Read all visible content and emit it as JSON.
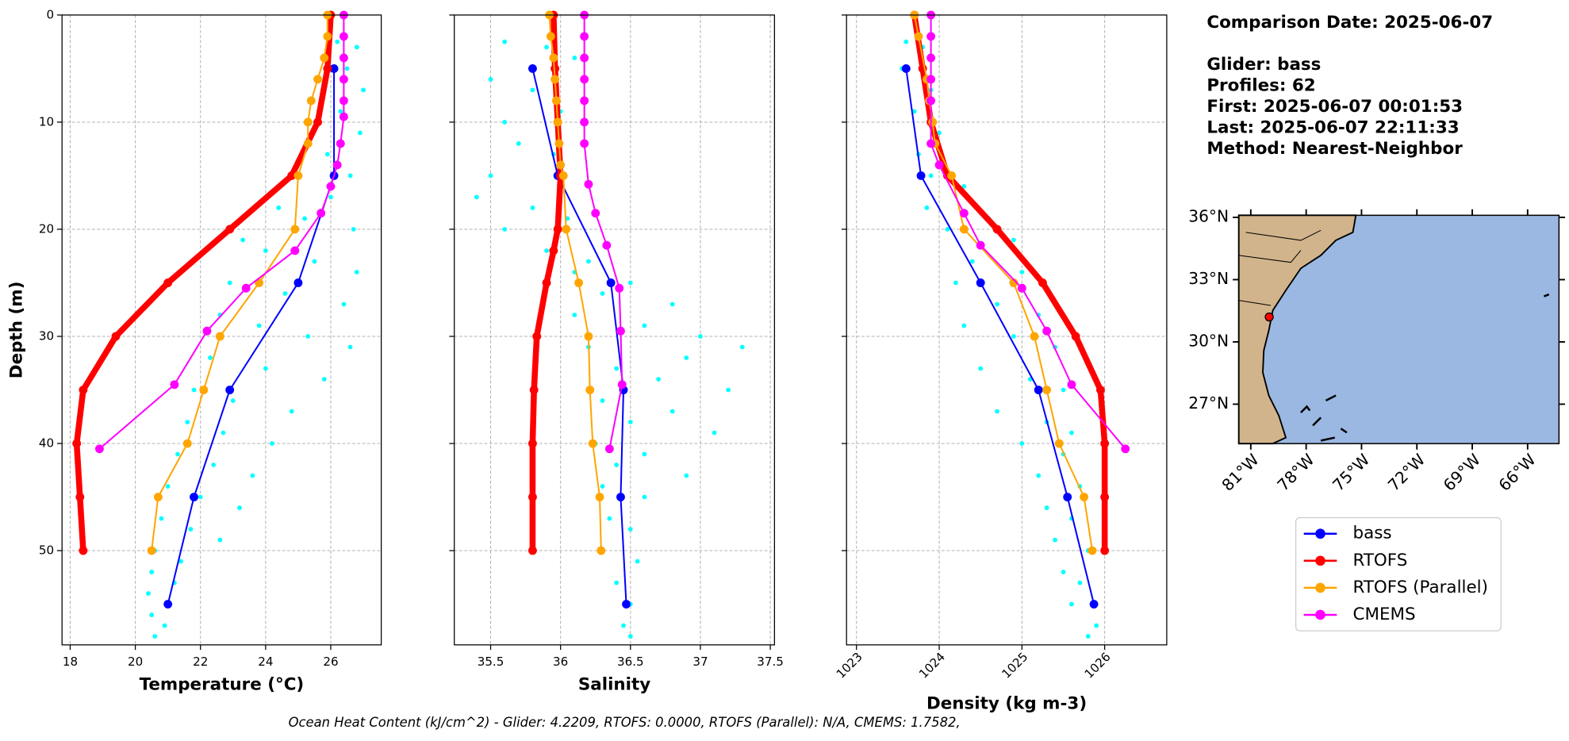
{
  "chart_data": [
    {
      "type": "line",
      "xlabel": "Temperature (°C)",
      "ylabel": "Depth (m)",
      "xlim": [
        17.75,
        27.55
      ],
      "xticks": [
        18,
        20,
        22,
        24,
        26
      ],
      "ylim": [
        58.8,
        0
      ],
      "yticks": [
        0,
        10,
        20,
        30,
        40,
        50
      ],
      "grid": true,
      "show_yticklabels": true,
      "scatter": {
        "color": "#00ffff",
        "values": [
          26.2,
          26.8,
          26.5,
          27.0,
          26.3,
          26.9,
          25.9,
          26.6,
          26.0,
          24.4,
          25.2,
          26.7,
          23.3,
          24.0,
          25.5,
          26.8,
          22.9,
          24.6,
          26.4,
          22.6,
          23.8,
          25.3,
          26.6,
          22.3,
          24.0,
          25.8,
          21.8,
          23.0,
          24.8,
          21.6,
          22.7,
          24.2,
          21.3,
          22.4,
          23.6,
          21.0,
          22.0,
          23.2,
          20.8,
          21.7,
          22.6,
          20.6,
          21.4,
          20.5,
          21.2,
          20.4,
          21.0,
          20.5,
          20.9,
          20.6
        ],
        "depth": [
          2.5,
          3,
          5,
          7,
          9,
          11,
          13,
          15,
          17,
          18,
          19,
          20,
          21,
          22,
          23,
          24,
          25,
          26,
          27,
          28,
          29,
          30,
          31,
          32,
          33,
          34,
          35,
          36,
          37,
          38,
          39,
          40,
          41,
          42,
          43,
          44,
          45,
          46,
          47,
          48,
          49,
          50,
          51,
          52,
          53,
          54,
          55,
          56,
          57,
          58
        ]
      },
      "series": [
        {
          "name": "bass",
          "color": "#0000ff",
          "values": [
            26.1,
            26.1,
            25.0,
            22.9,
            21.8,
            21.0
          ],
          "depth": [
            5,
            15,
            25,
            35,
            45,
            55
          ]
        },
        {
          "name": "RTOFS",
          "color": "#ff0000",
          "values": [
            26.0,
            25.9,
            25.6,
            24.8,
            22.9,
            21.0,
            19.4,
            18.4,
            18.2,
            18.3,
            18.4
          ],
          "depth": [
            0,
            5,
            10,
            15,
            20,
            25,
            30,
            35,
            40,
            45,
            50
          ]
        },
        {
          "name": "RTOFS (Parallel)",
          "color": "#ffa500",
          "values": [
            25.9,
            25.9,
            25.8,
            25.6,
            25.4,
            25.3,
            25.3,
            25.0,
            24.9,
            23.8,
            22.6,
            22.1,
            21.6,
            20.7,
            20.5
          ],
          "depth": [
            0,
            2,
            4,
            6,
            8,
            10,
            12,
            15,
            20,
            25,
            30,
            35,
            40,
            45,
            50
          ]
        },
        {
          "name": "CMEMS",
          "color": "#ff00ff",
          "values": [
            26.4,
            26.4,
            26.4,
            26.4,
            26.4,
            26.4,
            26.3,
            26.2,
            26.0,
            25.7,
            24.9,
            23.4,
            22.2,
            21.2,
            18.9
          ],
          "depth": [
            0,
            2,
            4,
            6,
            8,
            9.5,
            12,
            14,
            16,
            18.5,
            22,
            25.5,
            29.5,
            34.5,
            40.5
          ]
        }
      ]
    },
    {
      "type": "line",
      "xlabel": "Salinity",
      "xlim": [
        35.24,
        37.53
      ],
      "xticks": [
        35.5,
        36.0,
        36.5,
        37.0,
        37.5
      ],
      "ylim": [
        58.8,
        0
      ],
      "yticks": [
        0,
        10,
        20,
        30,
        40,
        50
      ],
      "grid": true,
      "show_yticklabels": false,
      "scatter": {
        "color": "#00ffff",
        "values": [
          35.6,
          35.9,
          36.1,
          35.5,
          35.8,
          36.0,
          35.6,
          35.7,
          35.95,
          35.5,
          35.4,
          35.8,
          36.05,
          35.6,
          35.9,
          36.2,
          36.1,
          36.5,
          36.3,
          36.8,
          36.1,
          36.6,
          37.0,
          36.2,
          36.9,
          37.3,
          36.4,
          36.7,
          37.2,
          36.3,
          36.8,
          36.5,
          37.1,
          36.25,
          36.6,
          36.4,
          36.9,
          36.3,
          36.6,
          36.35,
          36.5,
          36.3,
          36.55,
          36.4,
          36.5,
          36.45,
          36.5
        ],
        "depth": [
          2.5,
          3,
          4,
          6,
          7,
          9,
          10,
          12,
          13,
          15,
          17,
          18,
          19,
          20,
          22,
          23,
          24,
          25,
          26,
          27,
          28,
          29,
          30,
          31,
          32,
          31,
          33,
          34,
          35,
          36,
          37,
          38,
          39,
          40,
          41,
          42,
          43,
          44,
          45,
          47,
          48,
          50,
          51,
          53,
          55,
          57,
          58
        ]
      },
      "series": [
        {
          "name": "bass",
          "color": "#0000ff",
          "values": [
            35.8,
            35.98,
            36.36,
            36.45,
            36.43,
            36.47
          ],
          "depth": [
            5,
            15,
            25,
            35,
            45,
            55
          ]
        },
        {
          "name": "RTOFS",
          "color": "#ff0000",
          "values": [
            35.95,
            35.96,
            35.98,
            36.0,
            35.98,
            35.95,
            35.9,
            35.83,
            35.81,
            35.8,
            35.8,
            35.8
          ],
          "depth": [
            0,
            5,
            10,
            15,
            20,
            22,
            25,
            30,
            35,
            40,
            45,
            50
          ]
        },
        {
          "name": "RTOFS (Parallel)",
          "color": "#ffa500",
          "values": [
            35.92,
            35.93,
            35.95,
            35.96,
            35.97,
            35.98,
            35.99,
            36.0,
            36.02,
            36.04,
            36.13,
            36.2,
            36.21,
            36.23,
            36.28,
            36.29
          ],
          "depth": [
            0,
            2,
            4,
            6,
            8,
            10,
            12,
            14,
            15,
            20,
            25,
            30,
            35,
            40,
            45,
            50
          ]
        },
        {
          "name": "CMEMS",
          "color": "#ff00ff",
          "values": [
            36.17,
            36.17,
            36.17,
            36.17,
            36.17,
            36.17,
            36.17,
            36.2,
            36.25,
            36.33,
            36.42,
            36.43,
            36.44,
            36.35
          ],
          "depth": [
            0,
            2,
            4,
            6,
            8,
            10,
            12,
            15.8,
            18.5,
            21.5,
            25.5,
            29.5,
            34.5,
            40.5
          ]
        }
      ]
    },
    {
      "type": "line",
      "xlabel": "Density (kg m-3)",
      "xlim": [
        1022.88,
        1026.75
      ],
      "xticks": [
        1023,
        1024,
        1025,
        1026
      ],
      "xtick_rotation": 45,
      "ylim": [
        58.8,
        0
      ],
      "yticks": [
        0,
        10,
        20,
        30,
        40,
        50
      ],
      "grid": true,
      "show_yticklabels": false,
      "scatter": {
        "color": "#00ffff",
        "values": [
          1023.6,
          1023.8,
          1023.55,
          1023.9,
          1023.7,
          1024.0,
          1023.75,
          1023.9,
          1024.3,
          1023.85,
          1024.6,
          1024.1,
          1024.9,
          1024.4,
          1025.0,
          1024.2,
          1024.7,
          1025.2,
          1024.3,
          1024.9,
          1025.4,
          1024.5,
          1025.1,
          1025.5,
          1024.7,
          1025.3,
          1025.6,
          1025.0,
          1025.5,
          1025.2,
          1025.7,
          1025.3,
          1025.6,
          1025.4,
          1025.8,
          1025.5,
          1025.7,
          1025.6,
          1025.9,
          1025.8
        ],
        "depth": [
          2.5,
          3,
          5,
          7,
          9,
          11,
          13,
          15,
          16,
          18,
          19,
          20,
          21,
          23,
          24,
          25,
          27,
          28,
          29,
          30,
          31,
          33,
          34,
          35,
          37,
          38,
          39,
          40,
          41,
          43,
          44,
          46,
          47,
          49,
          50,
          52,
          53,
          55,
          57,
          58
        ]
      },
      "series": [
        {
          "name": "bass",
          "color": "#0000ff",
          "values": [
            1023.6,
            1023.78,
            1024.5,
            1025.2,
            1025.55,
            1025.87
          ],
          "depth": [
            5,
            15,
            25,
            35,
            45,
            55
          ]
        },
        {
          "name": "RTOFS",
          "color": "#ff0000",
          "values": [
            1023.7,
            1023.8,
            1023.9,
            1024.1,
            1024.7,
            1025.25,
            1025.65,
            1025.95,
            1026.0,
            1026.0,
            1026.0
          ],
          "depth": [
            0,
            5,
            10,
            15,
            20,
            25,
            30,
            35,
            40,
            45,
            50
          ]
        },
        {
          "name": "RTOFS (Parallel)",
          "color": "#ffa500",
          "values": [
            1023.7,
            1023.75,
            1023.85,
            1023.88,
            1023.92,
            1023.95,
            1024.15,
            1024.3,
            1024.9,
            1025.15,
            1025.3,
            1025.45,
            1025.75,
            1025.85
          ],
          "depth": [
            0,
            2,
            6,
            8,
            10,
            12,
            15,
            20,
            25,
            30,
            35,
            40,
            45,
            50
          ]
        },
        {
          "name": "CMEMS",
          "color": "#ff00ff",
          "values": [
            1023.9,
            1023.9,
            1023.9,
            1023.9,
            1023.9,
            1023.9,
            1024.0,
            1024.3,
            1024.5,
            1025.0,
            1025.3,
            1025.6,
            1026.25
          ],
          "depth": [
            0,
            2,
            4,
            6,
            8,
            12,
            14,
            18.5,
            21.5,
            25.5,
            29.5,
            34.5,
            40.5
          ]
        }
      ]
    },
    {
      "type": "map",
      "xlim": [
        -81.65,
        -64.3
      ],
      "ylim": [
        25.1,
        36.1
      ],
      "xticks": [
        {
          "value": -81,
          "label": "81°W"
        },
        {
          "value": -78,
          "label": "78°W"
        },
        {
          "value": -75,
          "label": "75°W"
        },
        {
          "value": -72,
          "label": "72°W"
        },
        {
          "value": -69,
          "label": "69°W"
        },
        {
          "value": -66,
          "label": "66°W"
        }
      ],
      "yticks": [
        {
          "value": 27,
          "label": "27°N"
        },
        {
          "value": 30,
          "label": "30°N"
        },
        {
          "value": 33,
          "label": "33°N"
        },
        {
          "value": 36,
          "label": "36°N"
        }
      ],
      "marker": {
        "x": -80.0,
        "y": 31.2,
        "color": "#ff0000"
      }
    }
  ],
  "annotations": {
    "date": "Comparison Date: 2025-06-07",
    "lines": [
      "Glider: bass",
      "Profiles: 62",
      "First: 2025-06-07 00:01:53",
      "Last: 2025-06-07 22:11:33",
      "Method: Nearest-Neighbor"
    ],
    "footer": "Ocean Heat Content (kJ/cm^2) - Glider: 4.2209,  RTOFS: 0.0000,  RTOFS (Parallel): N/A,  CMEMS: 1.7582,"
  }
}
